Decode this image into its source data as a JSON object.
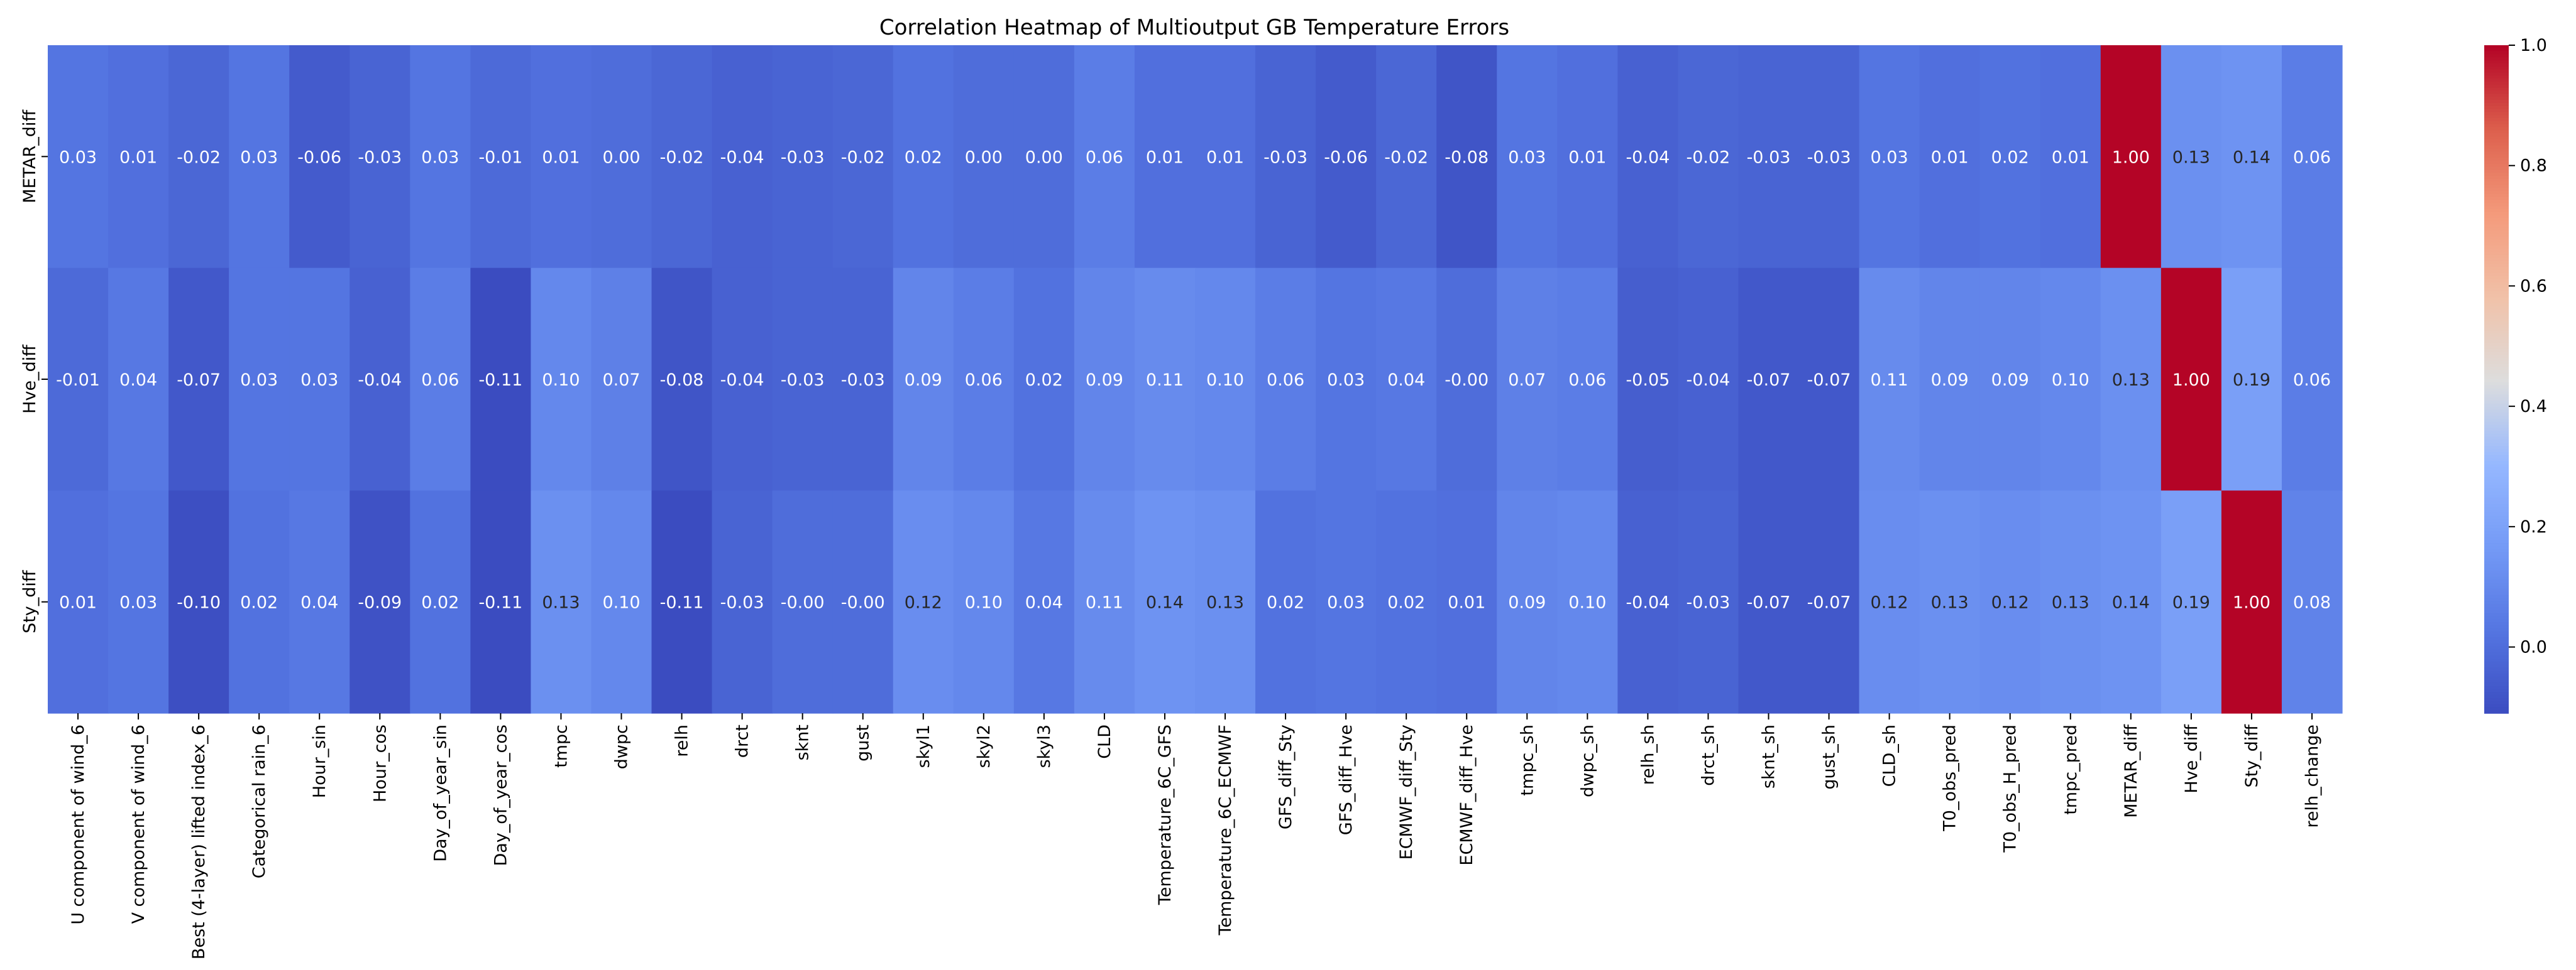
{
  "chart_data": {
    "type": "heatmap",
    "title": "Correlation Heatmap of Multioutput GB Temperature Errors",
    "xlabel": "",
    "ylabel": "",
    "rows": [
      "METAR_diff",
      "Hve_diff",
      "Sty_diff"
    ],
    "columns": [
      "U component of wind_6",
      "V component of wind_6",
      "Best (4-layer) lifted index_6",
      "Categorical rain_6",
      "Hour_sin",
      "Hour_cos",
      "Day_of_year_sin",
      "Day_of_year_cos",
      "tmpc",
      "dwpc",
      "relh",
      "drct",
      "sknt",
      "gust",
      "skyl1",
      "skyl2",
      "skyl3",
      "CLD",
      "Temperature_6C_GFS",
      "Temperature_6C_ECMWF",
      "GFS_diff_Sty",
      "GFS_diff_Hve",
      "ECMWF_diff_Sty",
      "ECMWF_diff_Hve",
      "tmpc_sh",
      "dwpc_sh",
      "relh_sh",
      "drct_sh",
      "sknt_sh",
      "gust_sh",
      "CLD_sh",
      "T0_obs_pred",
      "T0_obs_H_pred",
      "tmpc_pred",
      "METAR_diff",
      "Hve_diff",
      "Sty_diff",
      "relh_change"
    ],
    "values": [
      [
        0.03,
        0.01,
        -0.02,
        0.03,
        -0.06,
        -0.03,
        0.03,
        -0.01,
        0.01,
        0.0,
        -0.02,
        -0.04,
        -0.03,
        -0.02,
        0.02,
        0.0,
        0.0,
        0.06,
        0.01,
        0.01,
        -0.03,
        -0.06,
        -0.02,
        -0.08,
        0.03,
        0.01,
        -0.04,
        -0.02,
        -0.03,
        -0.03,
        0.03,
        0.01,
        0.02,
        0.01,
        1.0,
        0.13,
        0.14,
        0.06
      ],
      [
        -0.01,
        0.04,
        -0.07,
        0.03,
        0.03,
        -0.04,
        0.06,
        -0.11,
        0.1,
        0.07,
        -0.08,
        -0.04,
        -0.03,
        -0.03,
        0.09,
        0.06,
        0.02,
        0.09,
        0.11,
        0.1,
        0.06,
        0.03,
        0.04,
        -0.0,
        0.07,
        0.06,
        -0.05,
        -0.04,
        -0.07,
        -0.07,
        0.11,
        0.09,
        0.09,
        0.1,
        0.13,
        1.0,
        0.19,
        0.06
      ],
      [
        0.01,
        0.03,
        -0.1,
        0.02,
        0.04,
        -0.09,
        0.02,
        -0.11,
        0.13,
        0.1,
        -0.11,
        -0.03,
        -0.0,
        -0.0,
        0.12,
        0.1,
        0.04,
        0.11,
        0.14,
        0.13,
        0.02,
        0.03,
        0.02,
        0.01,
        0.09,
        0.1,
        -0.04,
        -0.03,
        -0.07,
        -0.07,
        0.12,
        0.13,
        0.12,
        0.13,
        0.14,
        0.19,
        1.0,
        0.08
      ]
    ],
    "vmin": -0.11,
    "vmax": 1.0,
    "colormap": "coolwarm",
    "colorbar_ticks": [
      0.0,
      0.2,
      0.4,
      0.6,
      0.8,
      1.0
    ],
    "colorbar_tick_labels": [
      "0.0",
      "0.2",
      "0.4",
      "0.6",
      "0.8",
      "1.0"
    ],
    "annotation_format": "0.00",
    "dark_text_color": "#262626",
    "light_text_color": "#ffffff"
  }
}
